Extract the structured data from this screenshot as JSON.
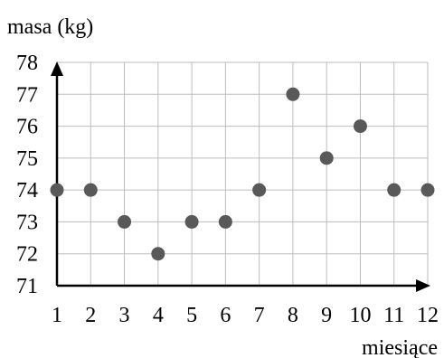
{
  "chart_data": {
    "type": "scatter",
    "ylabel": "masa (kg)",
    "xlabel": "miesiące",
    "xlim": [
      1,
      12
    ],
    "ylim": [
      71,
      78
    ],
    "x_ticks": [
      "1",
      "2",
      "3",
      "4",
      "5",
      "6",
      "7",
      "8",
      "9",
      "10",
      "11",
      "12"
    ],
    "y_ticks": [
      "71",
      "72",
      "73",
      "74",
      "75",
      "76",
      "77",
      "78"
    ],
    "grid": true,
    "point_color": "#595959",
    "series": [
      {
        "x": [
          1,
          2,
          3,
          4,
          5,
          6,
          7,
          8,
          9,
          10,
          11,
          12
        ],
        "y": [
          74,
          74,
          73,
          72,
          73,
          73,
          74,
          77,
          75,
          76,
          74,
          74
        ]
      }
    ]
  }
}
